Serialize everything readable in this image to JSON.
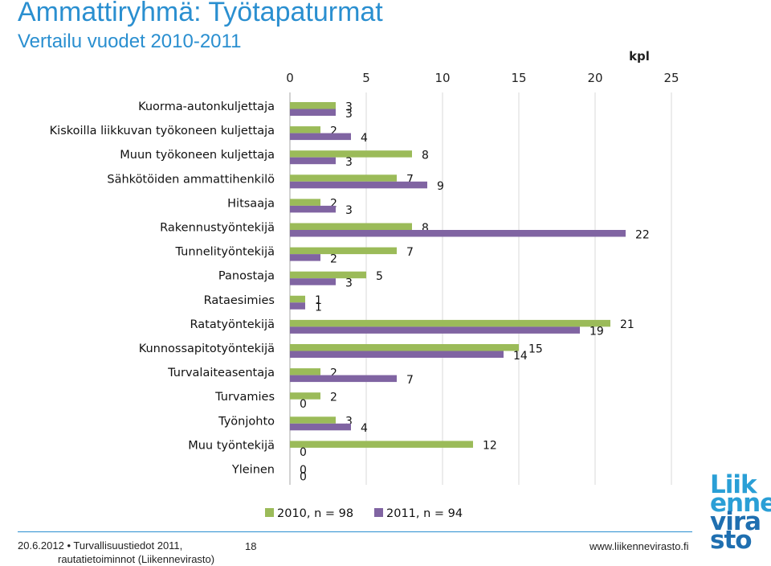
{
  "header": {
    "title": "Ammattiryhmä: Työtapaturmat",
    "subtitle": "Vertailu vuodet 2010-2011"
  },
  "chart_data": {
    "type": "bar",
    "orientation": "horizontal",
    "unit_label": "kpl",
    "xlim": [
      0,
      25
    ],
    "xticks": [
      0,
      5,
      10,
      15,
      20,
      25
    ],
    "grid": true,
    "legend_position": "bottom",
    "categories": [
      "Kuorma-autonkuljettaja",
      "Kiskoilla liikkuvan työkoneen kuljettaja",
      "Muun työkoneen kuljettaja",
      "Sähkötöiden ammattihenkilö",
      "Hitsaaja",
      "Rakennustyöntekijä",
      "Tunnelityöntekijä",
      "Panostaja",
      "Rataesimies",
      "Ratatyöntekijä",
      "Kunnossapitotyöntekijä",
      "Turvalaiteasentaja",
      "Turvamies",
      "Työnjohto",
      "Muu työntekijä",
      "Yleinen"
    ],
    "series": [
      {
        "name": "2010, n = 98",
        "color": "#9bbb59",
        "values": [
          3,
          2,
          8,
          7,
          2,
          8,
          7,
          5,
          1,
          21,
          15,
          2,
          2,
          3,
          12,
          0
        ]
      },
      {
        "name": "2011, n = 94",
        "color": "#8064a2",
        "values": [
          3,
          4,
          3,
          9,
          3,
          22,
          2,
          3,
          1,
          19,
          14,
          7,
          0,
          4,
          0,
          0
        ]
      }
    ]
  },
  "footer": {
    "date": "20.6.2012",
    "bullet": "•",
    "source_line1": "Turvallisuustiedot 2011,",
    "source_line2": "rautatietoiminnot (Liikennevirasto)",
    "page": "18",
    "url": "www.liikennevirasto.fi"
  },
  "logo": {
    "line1": "Liik",
    "line2": "enne",
    "line3": "vira",
    "line4": "sto"
  }
}
